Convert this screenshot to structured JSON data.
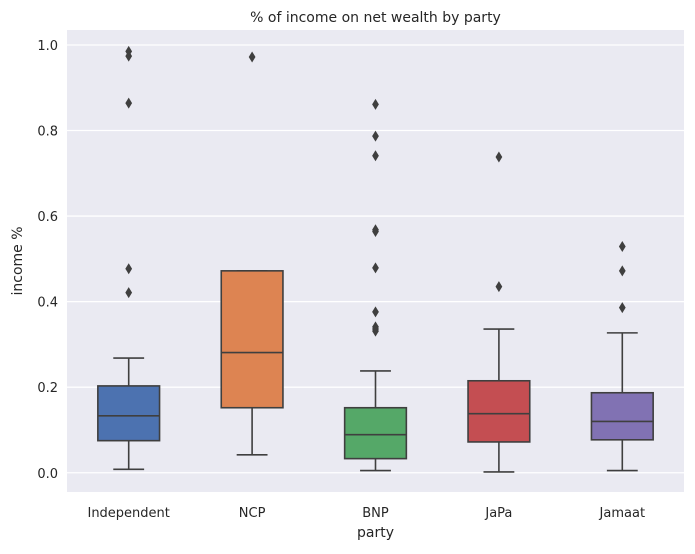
{
  "chart_data": {
    "type": "boxplot",
    "title": "% of income on net wealth by party",
    "xlabel": "party",
    "ylabel": "income %",
    "ylim": [
      -0.045,
      1.035
    ],
    "yticks": [
      0.0,
      0.2,
      0.4,
      0.6,
      0.8,
      1.0
    ],
    "ytick_labels": [
      "0.0",
      "0.2",
      "0.4",
      "0.6",
      "0.8",
      "1.0"
    ],
    "grid": true,
    "background": "#EAEAF2",
    "categories": [
      "Independent",
      "NCP",
      "BNP",
      "JaPa",
      "Jamaat"
    ],
    "series": [
      {
        "category": "Independent",
        "color": "#4C72B0",
        "whisker_low": 0.008,
        "q1": 0.075,
        "median": 0.133,
        "q3": 0.203,
        "whisker_high": 0.268,
        "outliers": [
          0.985,
          0.974,
          0.864,
          0.477,
          0.421
        ]
      },
      {
        "category": "NCP",
        "color": "#DD8452",
        "whisker_low": 0.042,
        "q1": 0.152,
        "median": 0.281,
        "q3": 0.472,
        "whisker_high": 0.472,
        "outliers": [
          0.972
        ]
      },
      {
        "category": "BNP",
        "color": "#55A868",
        "whisker_low": 0.005,
        "q1": 0.033,
        "median": 0.089,
        "q3": 0.152,
        "whisker_high": 0.238,
        "outliers": [
          0.861,
          0.787,
          0.741,
          0.568,
          0.564,
          0.479,
          0.376,
          0.341,
          0.336,
          0.331
        ]
      },
      {
        "category": "JaPa",
        "color": "#C44E52",
        "whisker_low": 0.002,
        "q1": 0.072,
        "median": 0.138,
        "q3": 0.215,
        "whisker_high": 0.336,
        "outliers": [
          0.738,
          0.435
        ]
      },
      {
        "category": "Jamaat",
        "color": "#8172B3",
        "whisker_low": 0.005,
        "q1": 0.077,
        "median": 0.12,
        "q3": 0.187,
        "whisker_high": 0.327,
        "outliers": [
          0.529,
          0.472,
          0.386
        ]
      }
    ]
  }
}
